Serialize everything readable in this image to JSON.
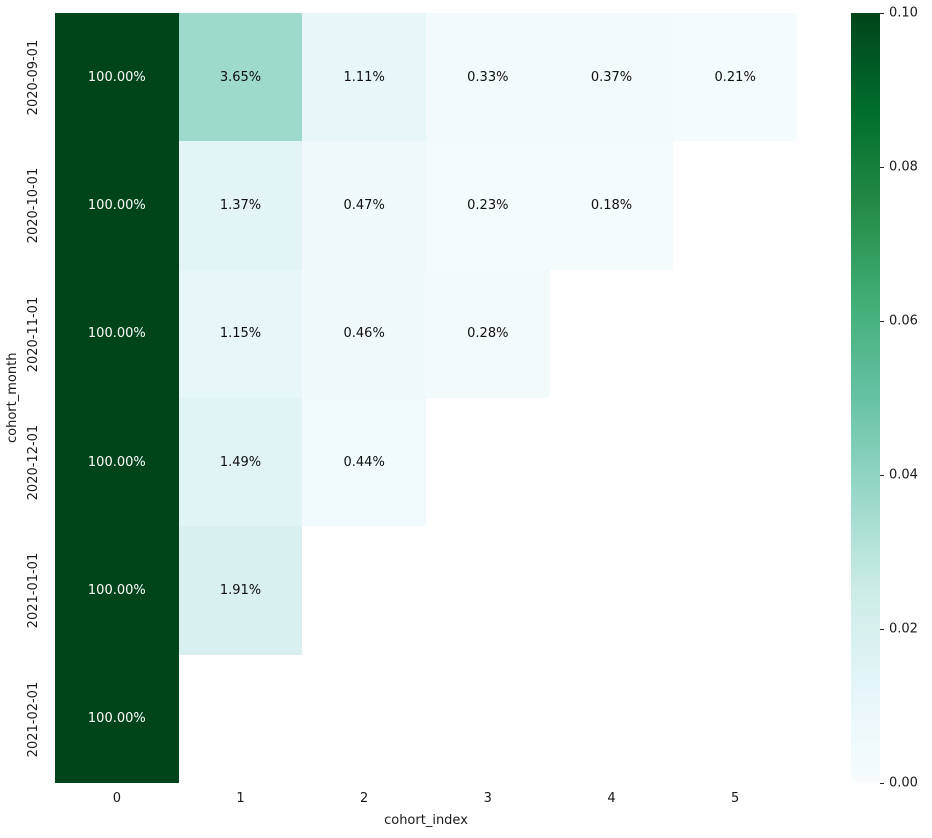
{
  "chart_data": {
    "type": "heatmap",
    "title": "",
    "xlabel": "cohort_index",
    "ylabel": "cohort_month",
    "x_categories": [
      "0",
      "1",
      "2",
      "3",
      "4",
      "5"
    ],
    "y_categories": [
      "2020-09-01",
      "2020-10-01",
      "2020-11-01",
      "2020-12-01",
      "2021-01-01",
      "2021-02-01"
    ],
    "values": [
      [
        1.0,
        0.0365,
        0.0111,
        0.0033,
        0.0037,
        0.0021
      ],
      [
        1.0,
        0.0137,
        0.0047,
        0.0023,
        0.0018,
        null
      ],
      [
        1.0,
        0.0115,
        0.0046,
        0.0028,
        null,
        null
      ],
      [
        1.0,
        0.0149,
        0.0044,
        null,
        null,
        null
      ],
      [
        1.0,
        0.0191,
        null,
        null,
        null,
        null
      ],
      [
        1.0,
        null,
        null,
        null,
        null,
        null
      ]
    ],
    "cell_labels": [
      [
        "100.00%",
        "3.65%",
        "1.11%",
        "0.33%",
        "0.37%",
        "0.21%"
      ],
      [
        "100.00%",
        "1.37%",
        "0.47%",
        "0.23%",
        "0.18%",
        null
      ],
      [
        "100.00%",
        "1.15%",
        "0.46%",
        "0.28%",
        null,
        null
      ],
      [
        "100.00%",
        "1.49%",
        "0.44%",
        null,
        null,
        null
      ],
      [
        "100.00%",
        "1.91%",
        null,
        null,
        null,
        null
      ],
      [
        "100.00%",
        null,
        null,
        null,
        null,
        null
      ]
    ],
    "vmin": 0.0,
    "vmax": 0.1,
    "colormap": "BuGn",
    "colormap_stops": [
      {
        "t": 0.0,
        "color": "#f7fcfd"
      },
      {
        "t": 0.125,
        "color": "#e5f5f9"
      },
      {
        "t": 0.25,
        "color": "#ccece6"
      },
      {
        "t": 0.375,
        "color": "#99d8c9"
      },
      {
        "t": 0.5,
        "color": "#66c2a4"
      },
      {
        "t": 0.625,
        "color": "#41ae76"
      },
      {
        "t": 0.75,
        "color": "#238b45"
      },
      {
        "t": 0.875,
        "color": "#006d2c"
      },
      {
        "t": 1.0,
        "color": "#00441b"
      }
    ],
    "colorbar_ticks": [
      {
        "value": 0.1,
        "label": "0.10"
      },
      {
        "value": 0.08,
        "label": "0.08"
      },
      {
        "value": 0.06,
        "label": "0.06"
      },
      {
        "value": 0.04,
        "label": "0.04"
      },
      {
        "value": 0.02,
        "label": "0.02"
      },
      {
        "value": 0.0,
        "label": "0.00"
      }
    ],
    "legend_position": "colorbar-right",
    "grid": false,
    "annotation_color_on_dark": "#ffffff",
    "annotation_color_on_light": "#0f0f0f",
    "tick_color": "#262626",
    "background_color": "#ffffff"
  }
}
